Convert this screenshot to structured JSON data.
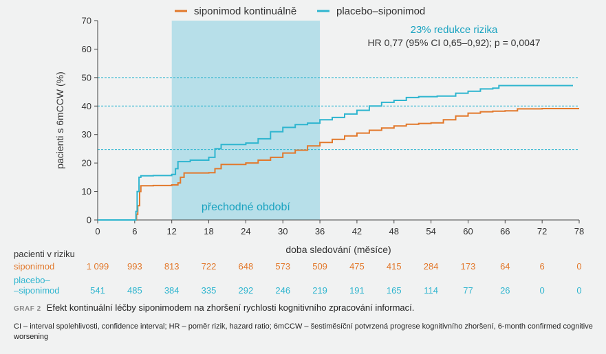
{
  "chart_data": {
    "type": "line",
    "subtype": "kaplan-meier step curve",
    "ylabel": "pacienti s 6mCCW (%)",
    "xlabel": "doba sledování (měsíce)",
    "xlim": [
      0,
      78
    ],
    "ylim": [
      0,
      70
    ],
    "xticks": [
      "0",
      "6",
      "12",
      "18",
      "24",
      "30",
      "36",
      "42",
      "48",
      "54",
      "60",
      "66",
      "72",
      "78"
    ],
    "yticks": [
      "0",
      "10",
      "20",
      "30",
      "40",
      "50",
      "60",
      "70"
    ],
    "grid": false,
    "legend_position": "top",
    "shaded_period": {
      "label": "přechodné období",
      "from": 12,
      "to": 36,
      "color": "#b7dfe9"
    },
    "reference_lines": [
      24.7,
      40,
      50
    ],
    "annotation_title": "23% redukce rizika",
    "annotation_stats": "HR 0,77 (95% CI 0,65–0,92); p = 0,0047",
    "series": [
      {
        "name": "siponimod kontinuálně",
        "color": "#e2782b",
        "points": [
          [
            0,
            0
          ],
          [
            6,
            0
          ],
          [
            6.3,
            2
          ],
          [
            6.5,
            5
          ],
          [
            6.8,
            10
          ],
          [
            7.0,
            12
          ],
          [
            9,
            12.1
          ],
          [
            12,
            12.3
          ],
          [
            13,
            13
          ],
          [
            13.4,
            15
          ],
          [
            14,
            16.5
          ],
          [
            18,
            16.6
          ],
          [
            19,
            18
          ],
          [
            20,
            19.5
          ],
          [
            24,
            20
          ],
          [
            26,
            21
          ],
          [
            28,
            22
          ],
          [
            30,
            23.5
          ],
          [
            32,
            24.5
          ],
          [
            34,
            26
          ],
          [
            36,
            27.2
          ],
          [
            38,
            28.3
          ],
          [
            40,
            29.5
          ],
          [
            42,
            30.5
          ],
          [
            44,
            31.5
          ],
          [
            46,
            32.3
          ],
          [
            48,
            33
          ],
          [
            50,
            33.6
          ],
          [
            52,
            33.9
          ],
          [
            54,
            34.1
          ],
          [
            56,
            35.2
          ],
          [
            58,
            36.5
          ],
          [
            60,
            37.5
          ],
          [
            62,
            38
          ],
          [
            64,
            38.2
          ],
          [
            66,
            38.3
          ],
          [
            68,
            39
          ],
          [
            72,
            39.1
          ],
          [
            78,
            39.1
          ]
        ]
      },
      {
        "name": "placebo–siponimod",
        "color": "#2eb5cf",
        "points": [
          [
            0,
            0
          ],
          [
            6,
            0
          ],
          [
            6.2,
            3
          ],
          [
            6.4,
            10
          ],
          [
            6.7,
            15
          ],
          [
            7.0,
            15.5
          ],
          [
            9,
            15.6
          ],
          [
            12,
            16
          ],
          [
            12.6,
            18
          ],
          [
            13,
            20.5
          ],
          [
            15,
            21
          ],
          [
            18,
            22
          ],
          [
            19,
            25
          ],
          [
            20,
            26.5
          ],
          [
            24,
            27
          ],
          [
            26,
            28.5
          ],
          [
            28,
            31
          ],
          [
            30,
            32.5
          ],
          [
            32,
            33.5
          ],
          [
            34,
            34
          ],
          [
            36,
            35.2
          ],
          [
            38,
            36
          ],
          [
            40,
            37.2
          ],
          [
            42,
            38.5
          ],
          [
            44,
            40
          ],
          [
            46,
            41.3
          ],
          [
            48,
            42
          ],
          [
            50,
            43
          ],
          [
            52,
            43.3
          ],
          [
            55,
            43.5
          ],
          [
            58,
            44.5
          ],
          [
            60,
            45.2
          ],
          [
            62,
            46
          ],
          [
            64,
            46.3
          ],
          [
            65,
            47.2
          ],
          [
            70,
            47.2
          ],
          [
            77,
            47.2
          ]
        ]
      }
    ],
    "risk_table": {
      "title": "pacienti v riziku",
      "times": [
        0,
        6,
        12,
        18,
        24,
        30,
        36,
        42,
        48,
        54,
        60,
        66,
        72,
        78
      ],
      "rows": [
        {
          "label": "siponimod",
          "color": "#e2782b",
          "values": [
            "1 099",
            "993",
            "813",
            "722",
            "648",
            "573",
            "509",
            "475",
            "415",
            "284",
            "173",
            "64",
            "6",
            "0"
          ]
        },
        {
          "label": "placebo–siponimod",
          "label_line1": "placebo–",
          "label_line2": "–siponimod",
          "color": "#2eb5cf",
          "values": [
            "541",
            "485",
            "384",
            "335",
            "292",
            "246",
            "219",
            "191",
            "165",
            "114",
            "77",
            "26",
            "0",
            "0"
          ]
        }
      ]
    }
  },
  "caption": {
    "label": "GRAF 2",
    "text": "Efekt kontinuální léčby siponimodem na zhoršení rychlosti kognitivního zpracování informací."
  },
  "footnote": "CI – interval spolehlivosti, confidence interval; HR – poměr rizik, hazard ratio; 6mCCW – šestiměsíční potvrzená progrese kognitivního zhoršení, 6-month confirmed cognitive worsening"
}
